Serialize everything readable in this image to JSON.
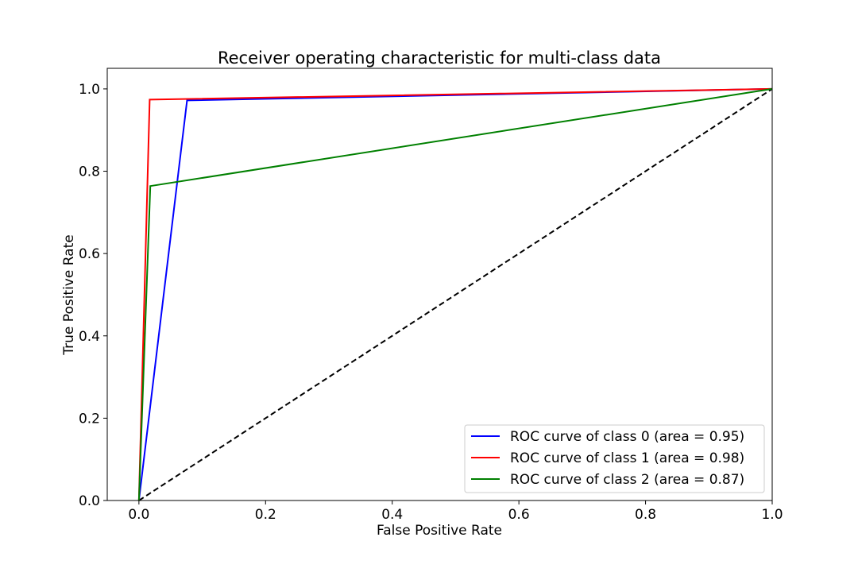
{
  "chart_data": {
    "type": "line",
    "title": "Receiver operating characteristic for multi-class data",
    "xlabel": "False Positive Rate",
    "ylabel": "True Positive Rate",
    "xlim": [
      -0.05,
      1.0
    ],
    "ylim": [
      0.0,
      1.05
    ],
    "xticks": [
      0.0,
      0.2,
      0.4,
      0.6,
      0.8,
      1.0
    ],
    "xtick_labels": [
      "0.0",
      "0.2",
      "0.4",
      "0.6",
      "0.8",
      "1.0"
    ],
    "yticks": [
      0.0,
      0.2,
      0.4,
      0.6,
      0.8,
      1.0
    ],
    "ytick_labels": [
      "0.0",
      "0.2",
      "0.4",
      "0.6",
      "0.8",
      "1.0"
    ],
    "grid": false,
    "legend_position": "lower-right",
    "series": [
      {
        "name": "ROC curve of class 0 (area = 0.95)",
        "color": "#0000ff",
        "x": [
          0.0,
          0.076,
          1.0
        ],
        "y": [
          0.0,
          0.972,
          1.0
        ]
      },
      {
        "name": "ROC curve of class 1 (area = 0.98)",
        "color": "#ff0000",
        "x": [
          0.0,
          0.017,
          1.0
        ],
        "y": [
          0.0,
          0.974,
          1.0
        ]
      },
      {
        "name": "ROC curve of class 2 (area = 0.87)",
        "color": "#008000",
        "x": [
          0.0,
          0.018,
          1.0
        ],
        "y": [
          0.0,
          0.764,
          1.0
        ]
      }
    ],
    "reference_line": {
      "x": [
        0.0,
        1.0
      ],
      "y": [
        0.0,
        1.0
      ],
      "color": "#000000",
      "style": "dashed"
    }
  }
}
